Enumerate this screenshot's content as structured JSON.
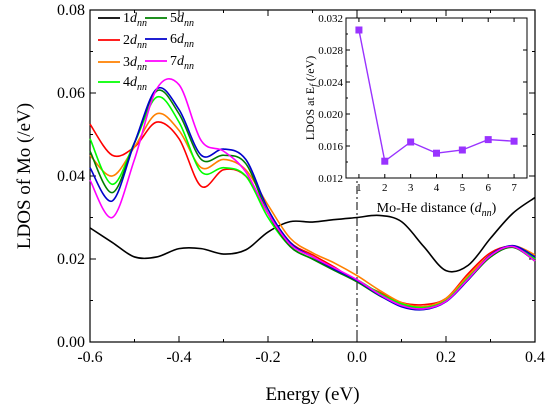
{
  "chart_data": [
    {
      "type": "line",
      "xlabel": "Energy (eV)",
      "ylabel": "LDOS of Mo (/eV)",
      "xlim": [
        -0.6,
        0.4
      ],
      "ylim": [
        0.0,
        0.08
      ],
      "xticks": [
        "-0.6",
        "-0.4",
        "-0.2",
        "0.0",
        "0.2",
        "0.4"
      ],
      "yticks": [
        "0.00",
        "0.02",
        "0.04",
        "0.06",
        "0.08"
      ],
      "fermi_line_x": 0.0,
      "legend_placement": "top-left",
      "series": [
        {
          "name": "1",
          "sub": "nn",
          "color": "#000000",
          "x": [
            -0.6,
            -0.55,
            -0.5,
            -0.45,
            -0.4,
            -0.35,
            -0.3,
            -0.25,
            -0.2,
            -0.15,
            -0.1,
            -0.05,
            0.0,
            0.05,
            0.1,
            0.15,
            0.2,
            0.25,
            0.3,
            0.35,
            0.4
          ],
          "y": [
            0.0275,
            0.024,
            0.0205,
            0.0205,
            0.0225,
            0.0225,
            0.0212,
            0.0222,
            0.0265,
            0.029,
            0.0289,
            0.0295,
            0.03,
            0.0305,
            0.029,
            0.023,
            0.0172,
            0.0185,
            0.025,
            0.031,
            0.0348
          ]
        },
        {
          "name": "2",
          "sub": "nn",
          "color": "#ff0000",
          "x": [
            -0.6,
            -0.55,
            -0.5,
            -0.45,
            -0.4,
            -0.35,
            -0.3,
            -0.25,
            -0.2,
            -0.15,
            -0.1,
            -0.05,
            0.0,
            0.05,
            0.1,
            0.15,
            0.2,
            0.25,
            0.3,
            0.35,
            0.4
          ],
          "y": [
            0.0525,
            0.045,
            0.047,
            0.053,
            0.049,
            0.0375,
            0.0415,
            0.04,
            0.031,
            0.024,
            0.021,
            0.018,
            0.0145,
            0.012,
            0.0095,
            0.009,
            0.0105,
            0.0165,
            0.0215,
            0.023,
            0.0205
          ]
        },
        {
          "name": "3",
          "sub": "nn",
          "color": "#ff8000",
          "x": [
            -0.6,
            -0.55,
            -0.5,
            -0.45,
            -0.4,
            -0.35,
            -0.3,
            -0.25,
            -0.2,
            -0.15,
            -0.1,
            -0.05,
            0.0,
            0.05,
            0.1,
            0.15,
            0.2,
            0.25,
            0.3,
            0.35,
            0.4
          ],
          "y": [
            0.045,
            0.04,
            0.047,
            0.055,
            0.051,
            0.042,
            0.044,
            0.0415,
            0.033,
            0.025,
            0.0215,
            0.019,
            0.016,
            0.0125,
            0.0095,
            0.0085,
            0.0105,
            0.016,
            0.021,
            0.0232,
            0.021
          ]
        },
        {
          "name": "4",
          "sub": "nn",
          "color": "#00ff00",
          "x": [
            -0.6,
            -0.55,
            -0.5,
            -0.45,
            -0.4,
            -0.35,
            -0.3,
            -0.25,
            -0.2,
            -0.15,
            -0.1,
            -0.05,
            0.0,
            0.05,
            0.1,
            0.15,
            0.2,
            0.25,
            0.3,
            0.35,
            0.4
          ],
          "y": [
            0.049,
            0.038,
            0.048,
            0.059,
            0.053,
            0.041,
            0.042,
            0.04,
            0.03,
            0.023,
            0.02,
            0.0175,
            0.015,
            0.0118,
            0.0092,
            0.0083,
            0.01,
            0.0155,
            0.0205,
            0.023,
            0.02
          ]
        },
        {
          "name": "5",
          "sub": "nn",
          "color": "#008000",
          "x": [
            -0.6,
            -0.55,
            -0.5,
            -0.45,
            -0.4,
            -0.35,
            -0.3,
            -0.25,
            -0.2,
            -0.15,
            -0.1,
            -0.05,
            0.0,
            0.05,
            0.1,
            0.15,
            0.2,
            0.25,
            0.3,
            0.35,
            0.4
          ],
          "y": [
            0.046,
            0.036,
            0.048,
            0.0605,
            0.055,
            0.044,
            0.045,
            0.043,
            0.031,
            0.023,
            0.02,
            0.0172,
            0.0145,
            0.0112,
            0.0088,
            0.008,
            0.0098,
            0.015,
            0.0205,
            0.0228,
            0.0195
          ]
        },
        {
          "name": "6",
          "sub": "nn",
          "color": "#0000cc",
          "x": [
            -0.6,
            -0.55,
            -0.5,
            -0.45,
            -0.4,
            -0.35,
            -0.3,
            -0.25,
            -0.2,
            -0.15,
            -0.1,
            -0.05,
            0.0,
            0.05,
            0.1,
            0.15,
            0.2,
            0.25,
            0.3,
            0.35,
            0.4
          ],
          "y": [
            0.042,
            0.034,
            0.048,
            0.061,
            0.056,
            0.045,
            0.0465,
            0.044,
            0.032,
            0.024,
            0.0205,
            0.0175,
            0.0148,
            0.0113,
            0.0085,
            0.0078,
            0.0097,
            0.015,
            0.021,
            0.0232,
            0.0205
          ]
        },
        {
          "name": "7",
          "sub": "nn",
          "color": "#ff00ff",
          "x": [
            -0.6,
            -0.55,
            -0.5,
            -0.45,
            -0.4,
            -0.35,
            -0.3,
            -0.25,
            -0.2,
            -0.15,
            -0.1,
            -0.05,
            0.0,
            0.05,
            0.1,
            0.15,
            0.2,
            0.25,
            0.3,
            0.35,
            0.4
          ],
          "y": [
            0.039,
            0.03,
            0.044,
            0.061,
            0.062,
            0.0485,
            0.046,
            0.041,
            0.031,
            0.0235,
            0.0205,
            0.0178,
            0.015,
            0.0115,
            0.0088,
            0.008,
            0.0098,
            0.0152,
            0.0208,
            0.023,
            0.0195
          ]
        }
      ]
    },
    {
      "type": "line",
      "inset": true,
      "xlabel_prefix": "Mo-He distance (",
      "xlabel_italic": "d",
      "xlabel_sub": "nn",
      "xlabel_suffix": ")",
      "ylabel_prefix": "LDOS at E",
      "ylabel_sub": "f",
      "ylabel_suffix": " (/eV)",
      "xlim": [
        0.5,
        7.5
      ],
      "ylim": [
        0.012,
        0.032
      ],
      "xticks": [
        "1",
        "2",
        "3",
        "4",
        "5",
        "6",
        "7"
      ],
      "yticks": [
        "0.012",
        "0.016",
        "0.020",
        "0.024",
        "0.028",
        "0.032"
      ],
      "marker": "square",
      "color": "#9933ff",
      "x": [
        1,
        2,
        3,
        4,
        5,
        6,
        7
      ],
      "y": [
        0.0305,
        0.0141,
        0.0165,
        0.0151,
        0.0155,
        0.0168,
        0.0166
      ]
    }
  ]
}
